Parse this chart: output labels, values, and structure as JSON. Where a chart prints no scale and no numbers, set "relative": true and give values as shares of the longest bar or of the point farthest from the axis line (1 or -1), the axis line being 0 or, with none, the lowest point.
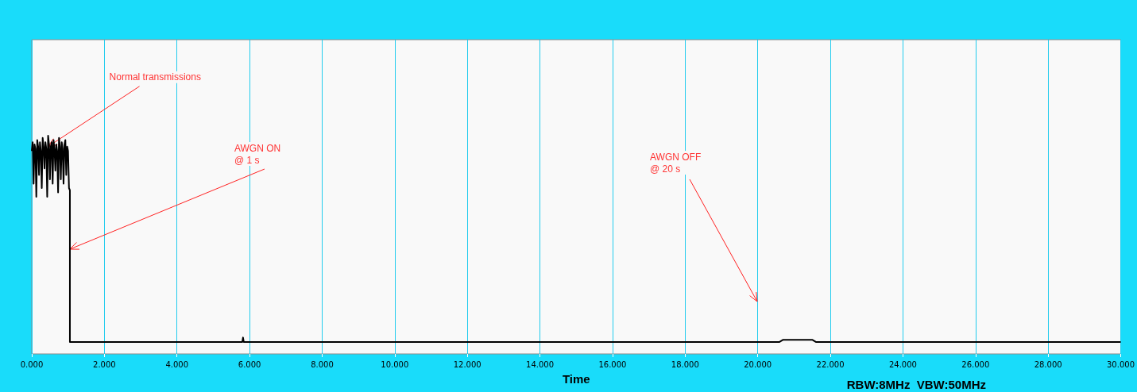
{
  "chart_data": {
    "type": "line",
    "xlabel": "Time",
    "relative": true,
    "grid": "x",
    "tick_labels": "x",
    "marker": "none",
    "line_style": "solid",
    "xlim": [
      0,
      30
    ],
    "xticks": [
      {
        "value": 0,
        "label": "0.000"
      },
      {
        "value": 2,
        "label": "2.000"
      },
      {
        "value": 4,
        "label": "4.000"
      },
      {
        "value": 6,
        "label": "6.000"
      },
      {
        "value": 8,
        "label": "8.000"
      },
      {
        "value": 10,
        "label": "10.000"
      },
      {
        "value": 12,
        "label": "12.000"
      },
      {
        "value": 14,
        "label": "14.000"
      },
      {
        "value": 16,
        "label": "16.000"
      },
      {
        "value": 18,
        "label": "18.000"
      },
      {
        "value": 20,
        "label": "20.000"
      },
      {
        "value": 22,
        "label": "22.000"
      },
      {
        "value": 24,
        "label": "24.000"
      },
      {
        "value": 26,
        "label": "26.000"
      },
      {
        "value": 28,
        "label": "28.000"
      },
      {
        "value": 30,
        "label": "30.000"
      }
    ],
    "x": [
      0,
      0.025,
      0.05,
      0.075,
      0.1,
      0.125,
      0.15,
      0.175,
      0.2,
      0.225,
      0.25,
      0.275,
      0.3,
      0.325,
      0.35,
      0.375,
      0.4,
      0.425,
      0.45,
      0.475,
      0.5,
      0.525,
      0.55,
      0.575,
      0.6,
      0.625,
      0.65,
      0.675,
      0.7,
      0.725,
      0.75,
      0.775,
      0.8,
      0.825,
      0.85,
      0.875,
      0.9,
      0.925,
      0.95,
      0.975,
      1.0,
      1.025,
      1.05,
      1.05,
      5.8,
      5.82,
      5.84,
      20.6,
      20.7,
      21.5,
      21.6,
      30
    ],
    "series": [
      {
        "color": "#000000",
        "values": [
          0.93,
          0.97,
          0.78,
          0.96,
          0.94,
          0.72,
          0.98,
          0.95,
          0.82,
          0.97,
          0.93,
          0.76,
          0.99,
          0.95,
          0.85,
          0.97,
          0.94,
          0.72,
          1.0,
          0.96,
          0.8,
          0.95,
          0.97,
          0.78,
          0.98,
          0.94,
          0.84,
          0.96,
          0.93,
          0.74,
          0.99,
          0.95,
          0.8,
          0.97,
          0.94,
          0.78,
          0.96,
          0.98,
          0.82,
          0.95,
          0.93,
          0.76,
          0.75,
          0.055,
          0.055,
          0.075,
          0.055,
          0.055,
          0.065,
          0.065,
          0.055,
          0.055
        ]
      }
    ],
    "annotations": [
      {
        "text": "Normal transmissions",
        "x": 0.45,
        "y": 0.95
      },
      {
        "text": "AWGN ON\n@ 1 s",
        "x": 1.05,
        "y": 0.48
      },
      "AWGN OFF\n@ 20 s",
      "RBW:8MHz  VBW:50MHz"
    ]
  }
}
